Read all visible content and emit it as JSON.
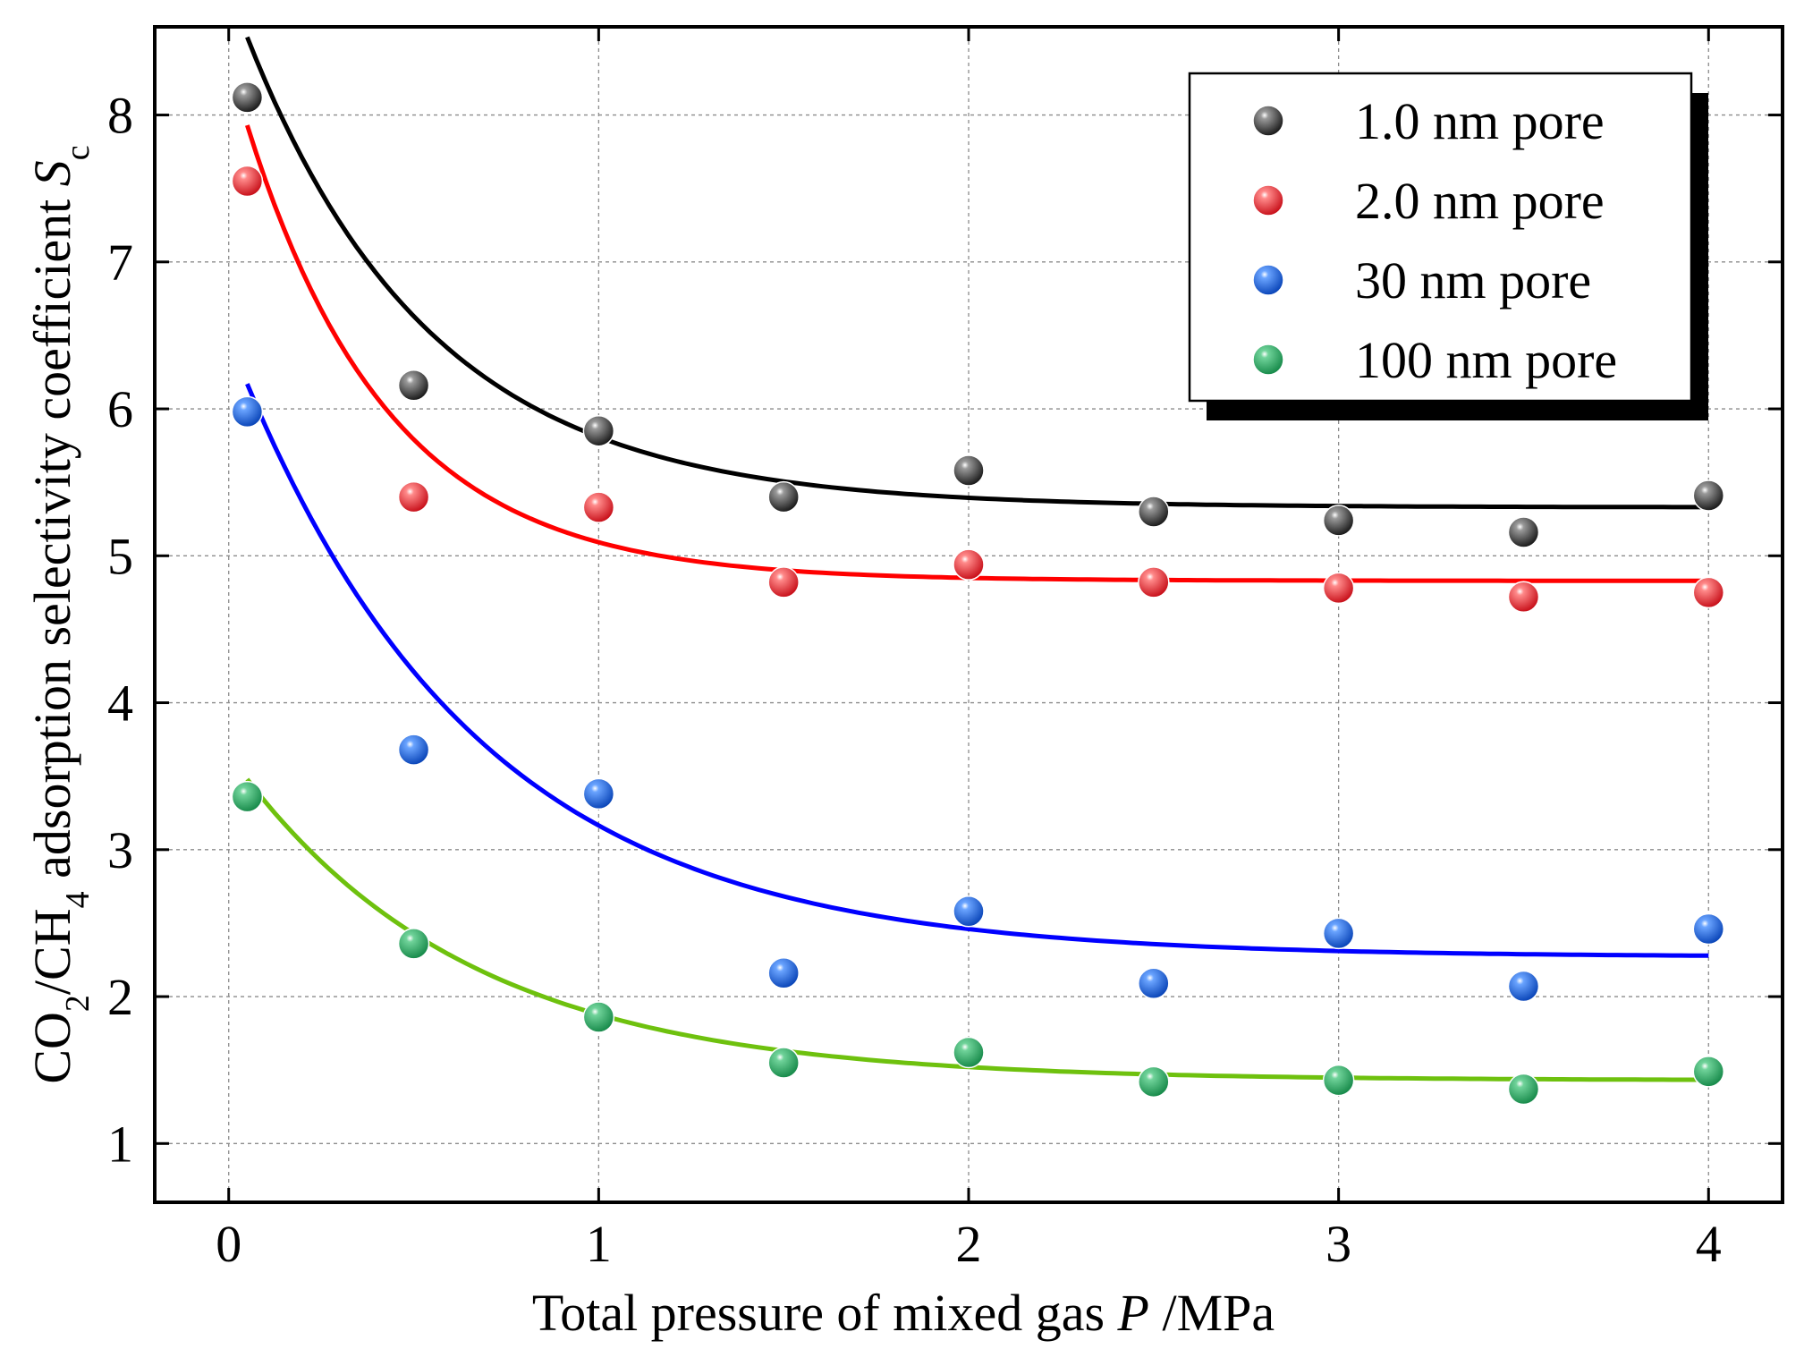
{
  "chart_data": {
    "type": "scatter",
    "title": "",
    "xlabel": {
      "before": "Total pressure of mixed gas ",
      "italic": "P",
      "after": " /MPa"
    },
    "ylabel": {
      "p1": "CO",
      "s1": "2",
      "p2": "/CH",
      "s2": "4",
      "p3": " adsorption selectivity coefficient ",
      "italic": "S",
      "s3": "c"
    },
    "xlim": [
      -0.2,
      4.2
    ],
    "ylim": [
      0.6,
      8.6
    ],
    "xticks": [
      0,
      1,
      2,
      3,
      4
    ],
    "yticks": [
      1,
      2,
      3,
      4,
      5,
      6,
      7,
      8
    ],
    "xtick_labels": [
      "0",
      "1",
      "2",
      "3",
      "4"
    ],
    "ytick_labels": [
      "1",
      "2",
      "3",
      "4",
      "5",
      "6",
      "7",
      "8"
    ],
    "grid": true,
    "legend_position": "top-right",
    "x": [
      0.05,
      0.5,
      1.0,
      1.5,
      2.0,
      2.5,
      3.0,
      3.5,
      4.0
    ],
    "series": [
      {
        "name": "1.0 nm pore",
        "color": "#3a3a3a",
        "values": [
          8.12,
          6.16,
          5.85,
          5.4,
          5.58,
          5.3,
          5.24,
          5.16,
          5.41
        ],
        "fit": {
          "y0": 5.33,
          "A": 3.2,
          "k": 2.0
        },
        "fit_color": "#000000"
      },
      {
        "name": "2.0 nm  pore",
        "color": "#ee2a2a",
        "values": [
          7.55,
          5.4,
          5.33,
          4.82,
          4.94,
          4.82,
          4.78,
          4.72,
          4.75
        ],
        "fit": {
          "y0": 4.83,
          "A": 3.1,
          "k": 2.6
        },
        "fit_color": "#ff0000"
      },
      {
        "name": "30  nm pore",
        "color": "#1e63de",
        "values": [
          5.98,
          3.68,
          3.38,
          2.16,
          2.58,
          2.09,
          2.43,
          2.07,
          2.46
        ],
        "fit": {
          "y0": 2.27,
          "A": 3.9,
          "k": 1.55
        },
        "fit_color": "#0000ff"
      },
      {
        "name": "100 nm pore",
        "color": "#2ea862",
        "values": [
          3.36,
          2.36,
          1.86,
          1.55,
          1.62,
          1.42,
          1.43,
          1.37,
          1.49
        ],
        "fit": {
          "y0": 1.43,
          "A": 2.05,
          "k": 1.6
        },
        "fit_color": "#6ec10e"
      }
    ]
  }
}
